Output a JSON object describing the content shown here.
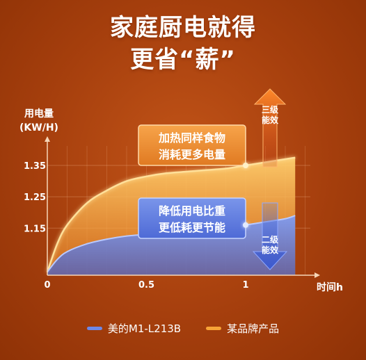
{
  "headline": {
    "line1": "家庭厨电就得",
    "line2": "更省“薪”"
  },
  "colors": {
    "background": "#a63f0d",
    "accent_orange": "#f2a03a",
    "accent_blue": "#4f6fd8"
  },
  "chart_data": {
    "type": "area",
    "ylabel": "用电量",
    "yunit": "(KW/H)",
    "xlabel": "时间h",
    "xlim": [
      0,
      1.25
    ],
    "ylim": [
      1.0,
      1.5
    ],
    "yticks": [
      1.15,
      1.25,
      1.35
    ],
    "ytick_labels": [
      "1.15",
      "1.25",
      "1.35"
    ],
    "xticks": [
      0,
      0.5,
      1
    ],
    "xtick_labels": [
      "0",
      "0.5",
      "1"
    ],
    "grid": true,
    "legend_position": "bottom-center",
    "series": [
      {
        "name": "美的M1-L213B",
        "color": "#5b78e0",
        "x": [
          0,
          0.05,
          0.1,
          0.2,
          0.3,
          0.4,
          0.5,
          0.6,
          0.7,
          0.8,
          0.9,
          1.0,
          1.1,
          1.2,
          1.25
        ],
        "y": [
          1.01,
          1.05,
          1.075,
          1.1,
          1.115,
          1.125,
          1.13,
          1.135,
          1.14,
          1.145,
          1.15,
          1.16,
          1.17,
          1.18,
          1.19
        ]
      },
      {
        "name": "某品牌产品",
        "color": "#f7a437",
        "x": [
          0,
          0.05,
          0.1,
          0.2,
          0.3,
          0.4,
          0.5,
          0.6,
          0.7,
          0.8,
          0.9,
          1.0,
          1.1,
          1.2,
          1.25
        ],
        "y": [
          1.01,
          1.1,
          1.16,
          1.23,
          1.27,
          1.3,
          1.315,
          1.325,
          1.33,
          1.335,
          1.34,
          1.35,
          1.36,
          1.37,
          1.375
        ]
      }
    ],
    "annotations": [
      {
        "id": "orange-callout",
        "lines": [
          "加热同样食物",
          "消耗更多电量"
        ]
      },
      {
        "id": "blue-callout",
        "lines": [
          "降低用电比重",
          "更低耗更节能"
        ]
      },
      {
        "id": "up-arrow-label",
        "lines": [
          "三级",
          "能效"
        ]
      },
      {
        "id": "down-arrow-label",
        "lines": [
          "二级",
          "能效"
        ]
      }
    ]
  }
}
